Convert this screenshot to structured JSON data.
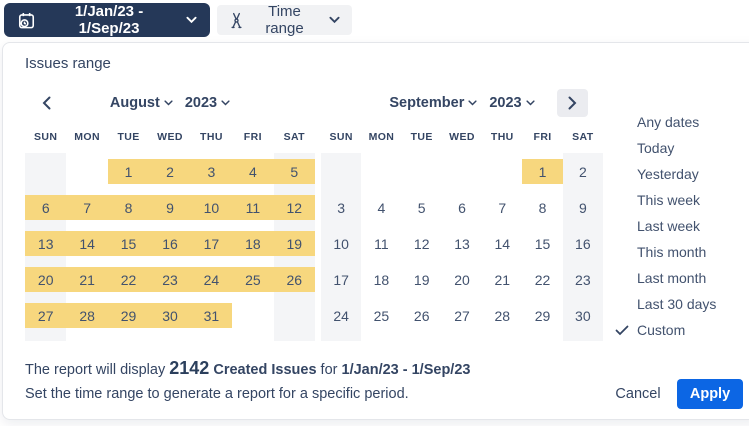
{
  "toolbar": {
    "date_range_button": {
      "label": "1/Jan/23 - 1/Sep/23",
      "icon": "calendar-clock"
    },
    "time_range_button": {
      "label": "Time range",
      "icon": "scissors"
    }
  },
  "panel": {
    "title": "Issues range",
    "calendars": [
      {
        "month": "August",
        "year": "2023",
        "day_headers": [
          "SUN",
          "MON",
          "TUE",
          "WED",
          "THU",
          "FRI",
          "SAT"
        ],
        "weeks": [
          [
            null,
            null,
            1,
            2,
            3,
            4,
            5
          ],
          [
            6,
            7,
            8,
            9,
            10,
            11,
            12
          ],
          [
            13,
            14,
            15,
            16,
            17,
            18,
            19
          ],
          [
            20,
            21,
            22,
            23,
            24,
            25,
            26
          ],
          [
            27,
            28,
            29,
            30,
            31,
            null,
            null
          ]
        ],
        "selected_range": [
          1,
          31
        ]
      },
      {
        "month": "September",
        "year": "2023",
        "day_headers": [
          "SUN",
          "MON",
          "TUE",
          "WED",
          "THU",
          "FRI",
          "SAT"
        ],
        "weeks": [
          [
            null,
            null,
            null,
            null,
            null,
            1,
            2
          ],
          [
            3,
            4,
            5,
            6,
            7,
            8,
            9
          ],
          [
            10,
            11,
            12,
            13,
            14,
            15,
            16
          ],
          [
            17,
            18,
            19,
            20,
            21,
            22,
            23
          ],
          [
            24,
            25,
            26,
            27,
            28,
            29,
            30
          ]
        ],
        "selected_range": [
          1,
          1
        ]
      }
    ],
    "presets": [
      {
        "label": "Any dates",
        "selected": false
      },
      {
        "label": "Today",
        "selected": false
      },
      {
        "label": "Yesterday",
        "selected": false
      },
      {
        "label": "This week",
        "selected": false
      },
      {
        "label": "Last week",
        "selected": false
      },
      {
        "label": "This month",
        "selected": false
      },
      {
        "label": "Last month",
        "selected": false
      },
      {
        "label": "Last 30 days",
        "selected": false
      },
      {
        "label": "Custom",
        "selected": true
      }
    ],
    "footer": {
      "summary_prefix": "The report will display",
      "summary_count": "2142",
      "summary_metric": "Created Issues",
      "summary_connector": "for",
      "summary_range": "1/Jan/23 - 1/Sep/23",
      "helper_text": "Set the time range to generate a report for a specific period.",
      "cancel_label": "Cancel",
      "apply_label": "Apply"
    }
  },
  "icons": {
    "calendar-clock": "📅",
    "scissors": "✂",
    "chevron-down": "⌄",
    "chevron-left": "‹",
    "chevron-right": "›",
    "check": "✓"
  },
  "colors": {
    "toolbar_dark_bg": "#253858",
    "toolbar_light_bg": "#F1F2F4",
    "selection_yellow": "#F7D77E",
    "weekend_gray": "#F4F5F7",
    "text_navy": "#344563",
    "day_text": "#42526E",
    "apply_blue": "#0C66E4",
    "panel_border": "#E4E6EA"
  }
}
